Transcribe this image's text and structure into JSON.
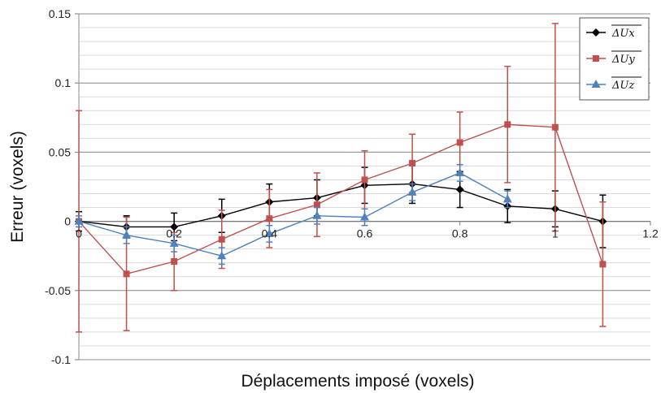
{
  "chart_data": {
    "type": "line",
    "title": "",
    "xlabel": "Déplacements imposé (voxels)",
    "ylabel": "Erreur (voxels)",
    "xlim": [
      0,
      1.2
    ],
    "ylim": [
      -0.1,
      0.15
    ],
    "xticks": [
      0,
      0.2,
      0.4,
      0.6,
      0.8,
      1,
      1.2
    ],
    "xtick_labels": [
      "0",
      "0.2",
      "0.4",
      "0.6",
      "0.8",
      "1",
      "1.2"
    ],
    "yticks": [
      -0.1,
      -0.05,
      0,
      0.05,
      0.1,
      0.15
    ],
    "ytick_labels": [
      "-0.1",
      "-0.05",
      "0",
      "0.05",
      "0.1",
      "0.15"
    ],
    "grid": {
      "major_y": true,
      "minor_y": true,
      "x": false
    },
    "legend_position": "top-right",
    "series": [
      {
        "name": "ΔU_x",
        "label_text": "ΔUx",
        "color": "#000000",
        "marker": "diamond",
        "x": [
          0,
          0.1,
          0.2,
          0.3,
          0.4,
          0.5,
          0.6,
          0.7,
          0.8,
          0.9,
          1.0,
          1.1,
          1.2
        ],
        "values": [
          0,
          -0.004,
          -0.004,
          0.004,
          0.014,
          0.017,
          0.026,
          0.027,
          0.023,
          0.011,
          0.009,
          0.0,
          null
        ],
        "error": [
          0.007,
          0.008,
          0.01,
          0.012,
          0.013,
          0.013,
          0.013,
          0.014,
          0.013,
          0.012,
          0.013,
          0.019,
          null
        ]
      },
      {
        "name": "ΔU_y",
        "label_text": "ΔUy",
        "color": "#c0504d",
        "marker": "square",
        "x": [
          0,
          0.1,
          0.2,
          0.3,
          0.4,
          0.5,
          0.6,
          0.7,
          0.8,
          0.9,
          1.0,
          1.1
        ],
        "values": [
          0,
          -0.038,
          -0.029,
          -0.013,
          0.002,
          0.012,
          0.03,
          0.042,
          0.057,
          0.07,
          0.068,
          -0.031
        ],
        "error": [
          0.08,
          0.041,
          0.021,
          0.021,
          0.021,
          0.023,
          0.021,
          0.021,
          0.022,
          0.042,
          0.075,
          0.045
        ]
      },
      {
        "name": "ΔU_z",
        "label_text": "ΔUz",
        "color": "#4f81bd",
        "marker": "triangle",
        "x": [
          0,
          0.1,
          0.2,
          0.3,
          0.4,
          0.5,
          0.6,
          0.7,
          0.8,
          0.9
        ],
        "values": [
          0,
          -0.01,
          -0.016,
          -0.025,
          -0.009,
          0.004,
          0.003,
          0.021,
          0.035,
          0.016
        ],
        "error": [
          0.004,
          0.006,
          0.006,
          0.006,
          0.006,
          0.006,
          0.006,
          0.006,
          0.006,
          0.006
        ]
      }
    ]
  }
}
